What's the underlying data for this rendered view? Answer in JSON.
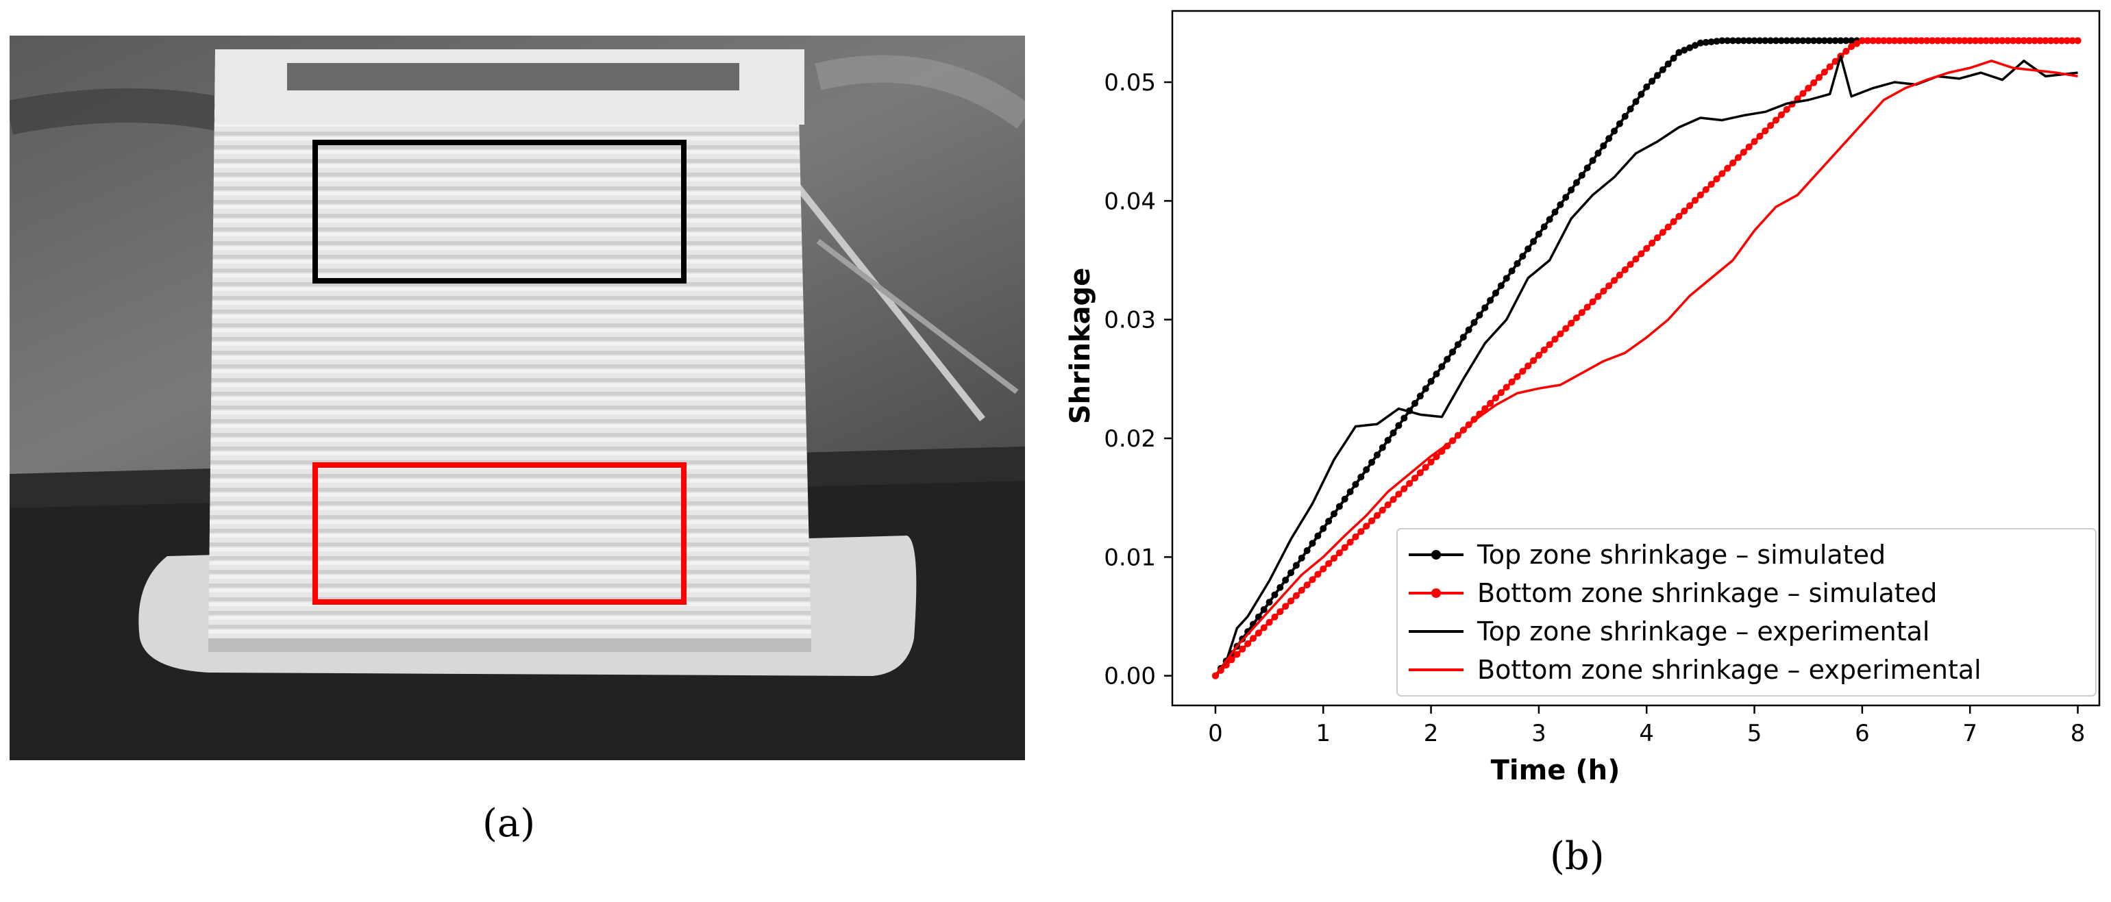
{
  "captions": {
    "a": "(a)",
    "b": "(b)"
  },
  "colors": {
    "top": "#000000",
    "bottom": "#ff0000"
  },
  "photo": {
    "description_free": true,
    "box_colors": {
      "top_zone": "#000000",
      "bottom_zone": "#ff0000"
    }
  },
  "chart_data": {
    "type": "line",
    "title": "",
    "xlabel": "Time (h)",
    "ylabel": "Shrinkage",
    "xlim": [
      -0.4,
      8.2
    ],
    "ylim": [
      -0.0025,
      0.056
    ],
    "xticks": [
      0,
      1,
      2,
      3,
      4,
      5,
      6,
      7,
      8
    ],
    "yticks": [
      0.0,
      0.01,
      0.02,
      0.03,
      0.04,
      0.05
    ],
    "ytick_labels": [
      "0.00",
      "0.01",
      "0.02",
      "0.03",
      "0.04",
      "0.05"
    ],
    "grid": false,
    "legend_position": "lower-right",
    "series": [
      {
        "name": "Top zone shrinkage – simulated",
        "color": "#000000",
        "style": "line-with-dots",
        "x": [
          0,
          0.5,
          1,
          1.5,
          2,
          2.5,
          3,
          3.5,
          4,
          4.3,
          4.5,
          4.7,
          5,
          6,
          7,
          8
        ],
        "y": [
          0,
          0.0062,
          0.0124,
          0.0186,
          0.0248,
          0.031,
          0.0372,
          0.0434,
          0.0496,
          0.0525,
          0.0533,
          0.0535,
          0.0535,
          0.0535,
          0.0535,
          0.0535
        ]
      },
      {
        "name": "Bottom zone shrinkage – simulated",
        "color": "#ff0000",
        "style": "line-with-dots",
        "x": [
          0,
          0.5,
          1,
          1.5,
          2,
          2.5,
          3,
          3.5,
          4,
          4.5,
          5,
          5.5,
          5.8,
          5.9,
          6,
          7,
          8
        ],
        "y": [
          0,
          0.0045,
          0.009,
          0.0135,
          0.018,
          0.0225,
          0.027,
          0.0315,
          0.036,
          0.0405,
          0.045,
          0.0495,
          0.0522,
          0.053,
          0.0535,
          0.0535,
          0.0535
        ]
      },
      {
        "name": "Top zone shrinkage – experimental",
        "color": "#000000",
        "style": "line",
        "x": [
          0,
          0.1,
          0.2,
          0.3,
          0.5,
          0.7,
          0.9,
          1.1,
          1.3,
          1.5,
          1.7,
          1.9,
          2.1,
          2.3,
          2.5,
          2.7,
          2.9,
          3.1,
          3.3,
          3.5,
          3.7,
          3.9,
          4.1,
          4.3,
          4.5,
          4.7,
          4.9,
          5.1,
          5.3,
          5.5,
          5.7,
          5.8,
          5.9,
          6.1,
          6.3,
          6.5,
          6.7,
          6.9,
          7.1,
          7.3,
          7.5,
          7.7,
          8.0
        ],
        "y": [
          0,
          0.0012,
          0.004,
          0.005,
          0.008,
          0.0115,
          0.0145,
          0.0182,
          0.021,
          0.0212,
          0.0225,
          0.022,
          0.0218,
          0.025,
          0.028,
          0.03,
          0.0335,
          0.035,
          0.0385,
          0.0405,
          0.042,
          0.044,
          0.045,
          0.0462,
          0.047,
          0.0468,
          0.0472,
          0.0475,
          0.0482,
          0.0485,
          0.049,
          0.0522,
          0.0488,
          0.0495,
          0.05,
          0.0498,
          0.0505,
          0.0503,
          0.0508,
          0.0502,
          0.0518,
          0.0505,
          0.0508
        ]
      },
      {
        "name": "Bottom zone shrinkage – experimental",
        "color": "#ff0000",
        "style": "line",
        "x": [
          0,
          0.2,
          0.4,
          0.6,
          0.8,
          1.0,
          1.2,
          1.4,
          1.6,
          1.8,
          2.0,
          2.2,
          2.4,
          2.6,
          2.8,
          3.0,
          3.2,
          3.4,
          3.6,
          3.8,
          4.0,
          4.2,
          4.4,
          4.6,
          4.8,
          5.0,
          5.2,
          5.4,
          5.6,
          5.8,
          6.0,
          6.2,
          6.4,
          6.6,
          6.8,
          7.0,
          7.2,
          7.4,
          7.6,
          7.8,
          8.0
        ],
        "y": [
          0,
          0.0025,
          0.0045,
          0.0065,
          0.0085,
          0.01,
          0.0118,
          0.0135,
          0.0155,
          0.017,
          0.0185,
          0.0198,
          0.0215,
          0.0228,
          0.0238,
          0.0242,
          0.0245,
          0.0255,
          0.0265,
          0.0272,
          0.0285,
          0.03,
          0.032,
          0.0335,
          0.035,
          0.0375,
          0.0395,
          0.0405,
          0.0425,
          0.0445,
          0.0465,
          0.0485,
          0.0495,
          0.0502,
          0.0508,
          0.0512,
          0.0518,
          0.0512,
          0.051,
          0.0508,
          0.0505
        ]
      }
    ]
  }
}
